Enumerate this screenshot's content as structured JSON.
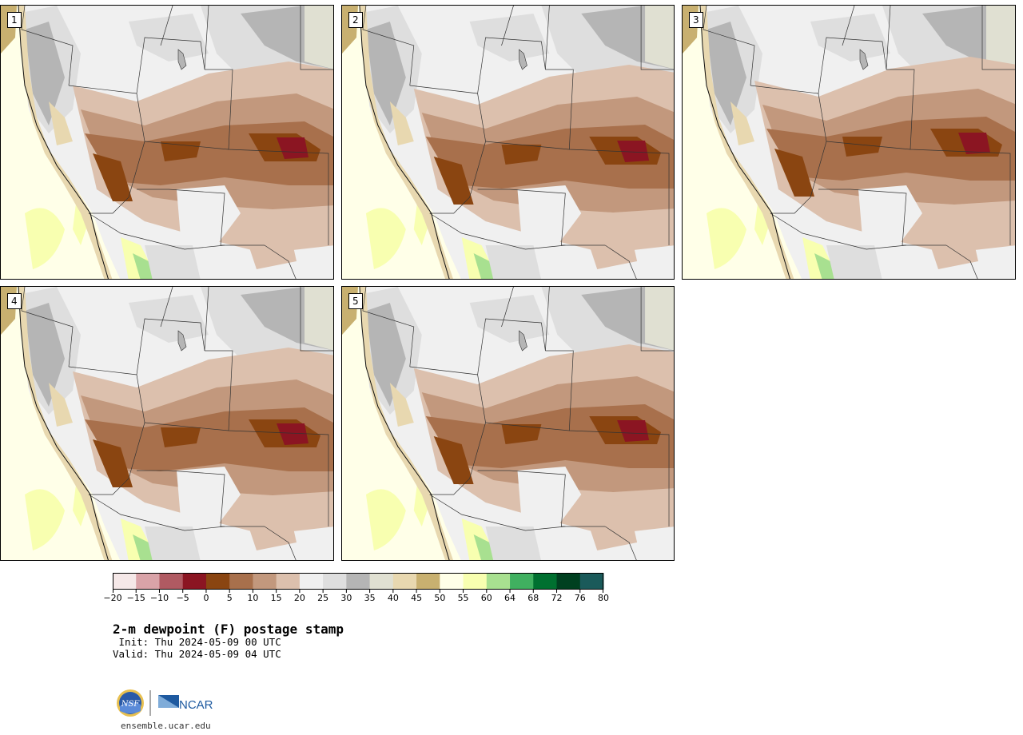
{
  "panels": [
    {
      "label": "1"
    },
    {
      "label": "2"
    },
    {
      "label": "3"
    },
    {
      "label": "4"
    },
    {
      "label": "5"
    }
  ],
  "colorbar": {
    "ticks": [
      "−20",
      "−15",
      "−10",
      "−5",
      "0",
      "5",
      "10",
      "15",
      "20",
      "25",
      "30",
      "35",
      "40",
      "45",
      "50",
      "55",
      "60",
      "64",
      "68",
      "72",
      "76",
      "80"
    ],
    "colors": [
      "#f5e8e8",
      "#d9a3a8",
      "#b05a62",
      "#8b1522",
      "#8a4511",
      "#a8704c",
      "#c2987d",
      "#dcc0ad",
      "#f0f0f0",
      "#dedede",
      "#b5b5b5",
      "#e0e0d2",
      "#e8d8b0",
      "#c8b070",
      "#ffffe8",
      "#f8ffb0",
      "#a8e090",
      "#40b060",
      "#007030",
      "#004020",
      "#1a5a5a",
      "#507878"
    ]
  },
  "title": "2-m dewpoint (F) postage stamp",
  "init_line": " Init: Thu 2024-05-09 00 UTC",
  "valid_line": "Valid: Thu 2024-05-09 04 UTC",
  "logos": {
    "nsf": "NSF",
    "ncar": "NCAR"
  },
  "url": "ensemble.ucar.edu"
}
